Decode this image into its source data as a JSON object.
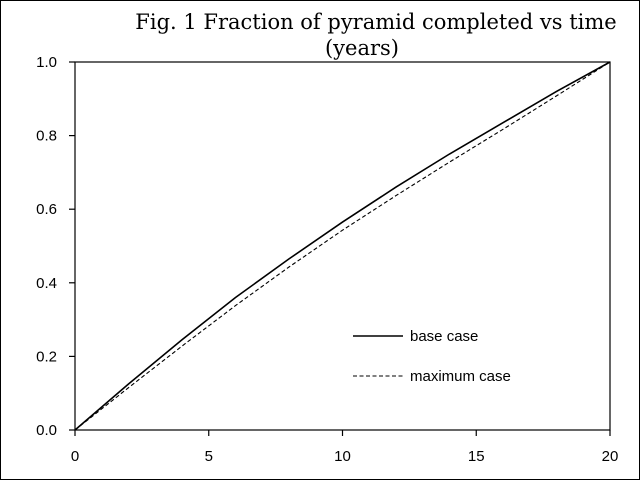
{
  "chart_data": {
    "type": "line",
    "title": "Fig. 1 Fraction of pyramid completed vs time (years)",
    "title_lines": [
      "Fig. 1 Fraction of pyramid completed vs time",
      "(years)"
    ],
    "xlabel": "",
    "ylabel": "",
    "xlim": [
      0,
      20
    ],
    "ylim": [
      0,
      1
    ],
    "x_ticks": [
      0,
      5,
      10,
      15,
      20
    ],
    "x_tick_labels": [
      "0",
      "5",
      "10",
      "15",
      "20"
    ],
    "y_ticks": [
      0,
      0.2,
      0.4,
      0.6,
      0.8,
      1.0
    ],
    "y_tick_labels": [
      "0.0",
      "0.2",
      "0.4",
      "0.6",
      "0.8",
      "1.0"
    ],
    "grid": false,
    "legend_position": "lower-right",
    "series": [
      {
        "name": "base case",
        "style": "solid",
        "color": "#000000",
        "x": [
          0,
          2,
          4,
          6,
          8,
          10,
          12,
          14,
          16,
          18,
          20
        ],
        "y": [
          0,
          0.125,
          0.245,
          0.36,
          0.465,
          0.565,
          0.66,
          0.75,
          0.835,
          0.92,
          1.0
        ]
      },
      {
        "name": "maximum case",
        "style": "dashed",
        "color": "#000000",
        "x": [
          0,
          2,
          4,
          6,
          8,
          10,
          12,
          14,
          16,
          18,
          20
        ],
        "y": [
          0,
          0.115,
          0.228,
          0.338,
          0.443,
          0.543,
          0.637,
          0.728,
          0.817,
          0.908,
          1.0
        ]
      }
    ]
  }
}
